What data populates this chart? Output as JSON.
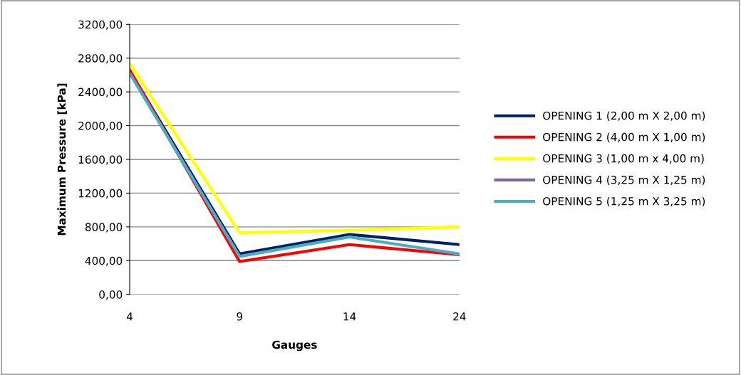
{
  "chart_data": {
    "type": "line",
    "xlabel": "Gauges",
    "ylabel": "Maximum Pressure [kPa]",
    "categories": [
      "4",
      "9",
      "14",
      "24"
    ],
    "series": [
      {
        "name": "OPENING 1 (2,00 m X 2,00 m)",
        "color": "#002060",
        "values": [
          2650,
          480,
          710,
          590
        ]
      },
      {
        "name": "OPENING 2 (4,00 m X 1,00 m)",
        "color": "#ff0000",
        "values": [
          2660,
          390,
          590,
          470
        ]
      },
      {
        "name": "OPENING 3 (1,00 m x 4,00 m)",
        "color": "#ffff00",
        "values": [
          2740,
          730,
          760,
          800
        ]
      },
      {
        "name": "OPENING 4 (3,25 m X 1,25 m)",
        "color": "#8064a2",
        "values": [
          null,
          null,
          null,
          null
        ]
      },
      {
        "name": "OPENING 5 (1,25 m X 3,25 m)",
        "color": "#4bacc6",
        "values": [
          2620,
          450,
          680,
          480
        ]
      }
    ],
    "ylim": [
      0,
      3200
    ],
    "yticks": [
      {
        "value": 0,
        "label": "0,00"
      },
      {
        "value": 400,
        "label": "400,00"
      },
      {
        "value": 800,
        "label": "800,00"
      },
      {
        "value": 1200,
        "label": "1200,00"
      },
      {
        "value": 1600,
        "label": "1600,00"
      },
      {
        "value": 2000,
        "label": "2000,00"
      },
      {
        "value": 2400,
        "label": "2400,00"
      },
      {
        "value": 2800,
        "label": "2800,00"
      },
      {
        "value": 3200,
        "label": "3200,00"
      }
    ],
    "grid": "y",
    "legend": "right",
    "marker": "none",
    "line_style": "solid"
  }
}
